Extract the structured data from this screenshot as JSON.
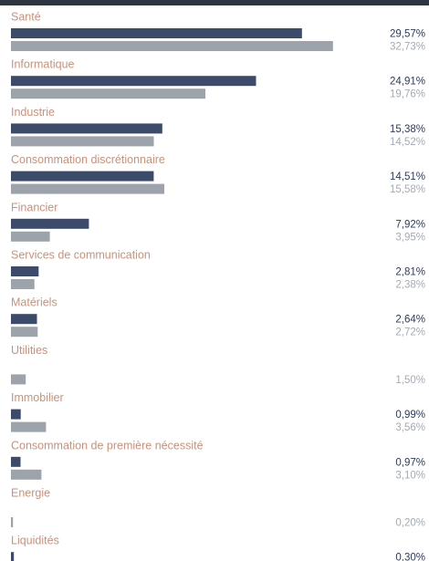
{
  "chart_data": {
    "type": "bar",
    "orientation": "horizontal",
    "categories": [
      "Santé",
      "Informatique",
      "Industrie",
      "Consommation discrétionnaire",
      "Financier",
      "Services de communication",
      "Matériels",
      "Utilities",
      "Immobilier",
      "Consommation de première nécessité",
      "Energie",
      "Liquidités"
    ],
    "series": [
      {
        "values": [
          29.57,
          24.91,
          15.38,
          14.51,
          7.92,
          2.81,
          2.64,
          null,
          0.99,
          0.97,
          null,
          0.3
        ],
        "labels": [
          "29,57%",
          "24,91%",
          "15,38%",
          "14,51%",
          "7,92%",
          "2,81%",
          "2,64%",
          null,
          "0,99%",
          "0,97%",
          null,
          "0,30%"
        ],
        "color": "#3c4b69",
        "label_color": "#2f3c58"
      },
      {
        "values": [
          32.73,
          19.76,
          14.52,
          15.58,
          3.95,
          2.38,
          2.72,
          1.5,
          3.56,
          3.1,
          0.2,
          null
        ],
        "labels": [
          "32,73%",
          "19,76%",
          "14,52%",
          "15,58%",
          "3,95%",
          "2,38%",
          "2,72%",
          "1,50%",
          "3,56%",
          "3,10%",
          "0,20%",
          null
        ],
        "color": "#9da3aa",
        "label_color": "#a5abb2"
      }
    ],
    "category_label_color": "#c8927a",
    "xlim": [
      0,
      33
    ],
    "grid": false,
    "legend": "none"
  }
}
